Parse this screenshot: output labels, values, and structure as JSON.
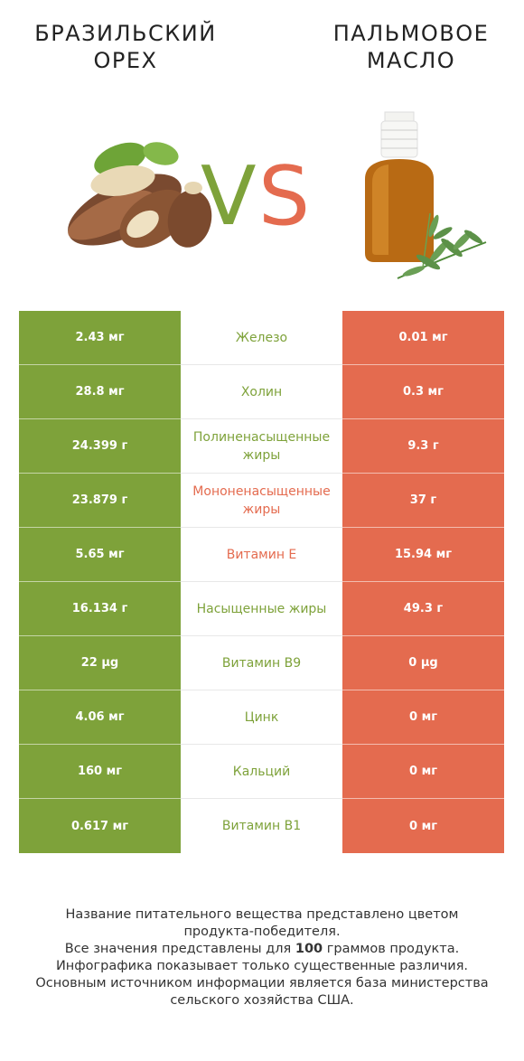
{
  "header": {
    "left_title_line1": "БРАЗИЛЬСКИЙ",
    "left_title_line2": "ОРЕХ",
    "right_title_line1": "ПАЛЬМОВОЕ",
    "right_title_line2": "МАСЛО",
    "vs_v": "V",
    "vs_s": "S"
  },
  "colors": {
    "left_product": "#7ea23a",
    "right_product": "#e46b4f"
  },
  "icons": {
    "left": "brazil-nut-illustration",
    "right": "oil-bottle-with-rosemary-illustration"
  },
  "rows": [
    {
      "left": "2.43 мг",
      "nutrient": "Железо",
      "right": "0.01 мг",
      "winner": "left"
    },
    {
      "left": "28.8 мг",
      "nutrient": "Холин",
      "right": "0.3 мг",
      "winner": "left"
    },
    {
      "left": "24.399 г",
      "nutrient": "Полиненасыщенные жиры",
      "right": "9.3 г",
      "winner": "left"
    },
    {
      "left": "23.879 г",
      "nutrient": "Мононенасыщенные жиры",
      "right": "37 г",
      "winner": "right"
    },
    {
      "left": "5.65 мг",
      "nutrient": "Витамин E",
      "right": "15.94 мг",
      "winner": "right"
    },
    {
      "left": "16.134 г",
      "nutrient": "Насыщенные жиры",
      "right": "49.3 г",
      "winner": "left"
    },
    {
      "left": "22 µg",
      "nutrient": "Витамин B9",
      "right": "0 µg",
      "winner": "left"
    },
    {
      "left": "4.06 мг",
      "nutrient": "Цинк",
      "right": "0 мг",
      "winner": "left"
    },
    {
      "left": "160 мг",
      "nutrient": "Кальций",
      "right": "0 мг",
      "winner": "left"
    },
    {
      "left": "0.617 мг",
      "nutrient": "Витамин B1",
      "right": "0 мг",
      "winner": "left"
    }
  ],
  "footer": {
    "line1": "Название питательного вещества представлено цветом",
    "line2": "продукта-победителя.",
    "line3_pre": "Все значения представлены для ",
    "line3_bold": "100",
    "line3_post": " граммов продукта.",
    "line4": "Инфографика показывает только существенные различия.",
    "line5": "Основным источником информации является база министерства",
    "line6": "сельского хозяйства США."
  }
}
